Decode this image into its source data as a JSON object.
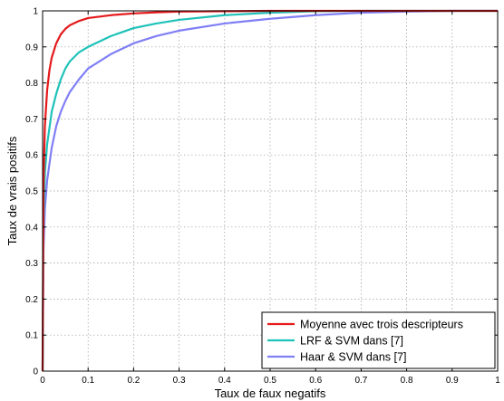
{
  "chart_data": {
    "type": "line",
    "title": "",
    "xlabel": "Taux de faux negatifs",
    "ylabel": "Taux de vrais positifs",
    "xlim": [
      0,
      1
    ],
    "ylim": [
      0,
      1
    ],
    "x_ticks": [
      "0",
      "0.1",
      "0.2",
      "0.3",
      "0.4",
      "0.5",
      "0.6",
      "0.7",
      "0.8",
      "0.9",
      "1"
    ],
    "y_ticks": [
      "0",
      "0.1",
      "0.2",
      "0.3",
      "0.4",
      "0.5",
      "0.6",
      "0.7",
      "0.8",
      "0.9",
      "1"
    ],
    "grid": true,
    "legend_position": "bottom-right",
    "series": [
      {
        "name": "Moyenne avec trois descripteurs",
        "color": "#e41a1c",
        "x": [
          0,
          0.002,
          0.005,
          0.01,
          0.015,
          0.02,
          0.03,
          0.04,
          0.05,
          0.06,
          0.08,
          0.1,
          0.15,
          0.2,
          0.25,
          0.3,
          0.4,
          0.5,
          0.6,
          0.7,
          1.0
        ],
        "y": [
          0,
          0.52,
          0.68,
          0.78,
          0.835,
          0.87,
          0.91,
          0.935,
          0.95,
          0.96,
          0.972,
          0.98,
          0.988,
          0.993,
          0.996,
          0.998,
          0.999,
          1.0,
          1.0,
          1.0,
          1.0
        ]
      },
      {
        "name": "LRF & SVM dans [7]",
        "color": "#1ec2b8",
        "x": [
          0,
          0.002,
          0.005,
          0.01,
          0.02,
          0.03,
          0.04,
          0.05,
          0.06,
          0.08,
          0.1,
          0.15,
          0.2,
          0.25,
          0.3,
          0.4,
          0.5,
          0.6,
          0.7,
          0.8,
          1.0
        ],
        "y": [
          0,
          0.42,
          0.55,
          0.63,
          0.72,
          0.77,
          0.81,
          0.84,
          0.86,
          0.885,
          0.9,
          0.93,
          0.952,
          0.965,
          0.975,
          0.988,
          0.995,
          0.999,
          1.0,
          1.0,
          1.0
        ]
      },
      {
        "name": "Haar & SVM dans [7]",
        "color": "#7f7ff5",
        "x": [
          0,
          0.002,
          0.005,
          0.01,
          0.02,
          0.03,
          0.04,
          0.05,
          0.06,
          0.08,
          0.1,
          0.15,
          0.2,
          0.25,
          0.3,
          0.4,
          0.5,
          0.6,
          0.7,
          0.8,
          0.9,
          1.0
        ],
        "y": [
          0,
          0.34,
          0.45,
          0.53,
          0.62,
          0.68,
          0.72,
          0.75,
          0.775,
          0.81,
          0.84,
          0.88,
          0.91,
          0.93,
          0.945,
          0.965,
          0.978,
          0.988,
          0.995,
          0.998,
          1.0,
          1.0
        ]
      }
    ]
  }
}
